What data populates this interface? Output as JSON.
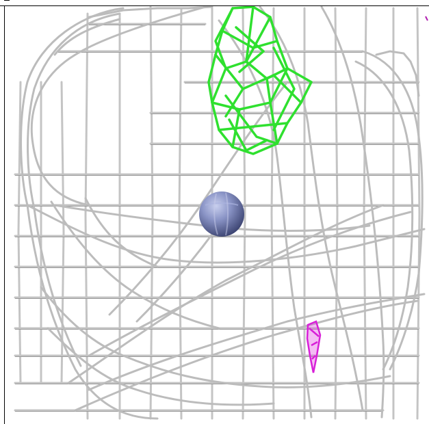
{
  "viewer": {
    "background_color": "#ffffff",
    "mesh_color": "#c9c9c9",
    "mesh_shadow_color": "#8e8e8e",
    "green_density_color": "#33e633",
    "magenta_density_color": "#e21fe2",
    "atom_color": "#7f8ab8",
    "objects": [
      {
        "name": "grey-mesh",
        "kind": "electron-density-mesh"
      },
      {
        "name": "green-mesh",
        "kind": "positive-difference-density"
      },
      {
        "name": "magenta-mesh",
        "kind": "negative-difference-density"
      },
      {
        "name": "atom-sphere",
        "kind": "sphere"
      }
    ]
  }
}
